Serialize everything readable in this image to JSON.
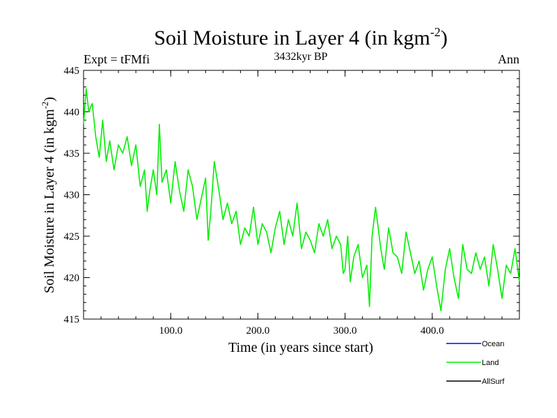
{
  "chart_data": {
    "type": "line",
    "title": "Soil Moisture in Layer 4 (in kgm",
    "title_sup": "-2",
    "title_close": ")",
    "subtitle_left": "Expt = tFMfi",
    "subtitle_center": "3432kyr BP",
    "subtitle_right": "Ann",
    "xlabel": "Time (in years since start)",
    "ylabel": "Soil Moisture in Layer 4 (in kgm",
    "ylabel_sup": "-2",
    "ylabel_close": ")",
    "xlim": [
      0,
      500
    ],
    "ylim": [
      415,
      445
    ],
    "x_ticks": [
      100,
      200,
      300,
      400
    ],
    "x_tick_labels": [
      "100.0",
      "200.0",
      "300.0",
      "400.0"
    ],
    "y_ticks": [
      415,
      420,
      425,
      430,
      435,
      440,
      445
    ],
    "y_tick_labels": [
      "415",
      "420",
      "425",
      "430",
      "435",
      "440",
      "445"
    ],
    "legend": [
      {
        "name": "Ocean",
        "color": "#0000ff"
      },
      {
        "name": "Land",
        "color": "#00ee00"
      },
      {
        "name": "AllSurf",
        "color": "#000000"
      }
    ],
    "series": [
      {
        "name": "Land",
        "color": "#00ee00",
        "x": [
          0,
          3,
          6,
          10,
          14,
          18,
          22,
          26,
          30,
          35,
          40,
          45,
          50,
          55,
          60,
          65,
          70,
          73,
          76,
          80,
          84,
          87,
          90,
          95,
          100,
          105,
          110,
          115,
          120,
          125,
          130,
          135,
          140,
          143,
          146,
          150,
          153,
          156,
          160,
          165,
          170,
          175,
          180,
          185,
          190,
          195,
          200,
          205,
          210,
          215,
          220,
          225,
          230,
          235,
          240,
          245,
          250,
          255,
          260,
          265,
          270,
          275,
          280,
          285,
          290,
          295,
          298,
          300,
          303,
          306,
          310,
          315,
          320,
          325,
          328,
          331,
          335,
          338,
          341,
          345,
          350,
          355,
          360,
          365,
          370,
          375,
          380,
          385,
          390,
          395,
          400,
          405,
          410,
          415,
          420,
          425,
          430,
          435,
          440,
          445,
          450,
          455,
          460,
          465,
          470,
          475,
          480,
          485,
          490,
          495,
          500
        ],
        "values": [
          438.5,
          442.8,
          440.0,
          441.0,
          437.0,
          434.5,
          439.0,
          434.0,
          436.5,
          433.0,
          436.0,
          435.0,
          437.0,
          433.5,
          436.0,
          431.0,
          433.0,
          428.0,
          430.5,
          433.0,
          430.0,
          438.5,
          431.5,
          433.0,
          429.0,
          434.0,
          430.5,
          428.0,
          433.0,
          431.0,
          427.0,
          429.5,
          432.0,
          424.5,
          428.0,
          434.0,
          432.0,
          430.0,
          427.0,
          429.0,
          426.5,
          428.0,
          424.0,
          426.0,
          425.0,
          428.5,
          424.0,
          426.5,
          425.5,
          423.0,
          426.0,
          428.0,
          424.0,
          427.0,
          425.0,
          429.0,
          423.5,
          425.5,
          424.5,
          423.0,
          426.5,
          425.0,
          427.0,
          423.5,
          425.0,
          424.0,
          420.5,
          421.0,
          425.0,
          419.5,
          422.5,
          424.0,
          420.0,
          421.5,
          416.5,
          425.0,
          428.5,
          426.0,
          423.5,
          421.0,
          426.0,
          423.0,
          422.5,
          420.5,
          425.5,
          423.0,
          420.5,
          422.0,
          418.5,
          421.0,
          422.5,
          419.0,
          416.0,
          421.0,
          423.5,
          420.0,
          417.5,
          424.0,
          421.0,
          420.5,
          423.0,
          421.0,
          422.5,
          419.0,
          424.0,
          421.0,
          417.5,
          421.5,
          420.5,
          423.5,
          419.5
        ]
      }
    ]
  }
}
